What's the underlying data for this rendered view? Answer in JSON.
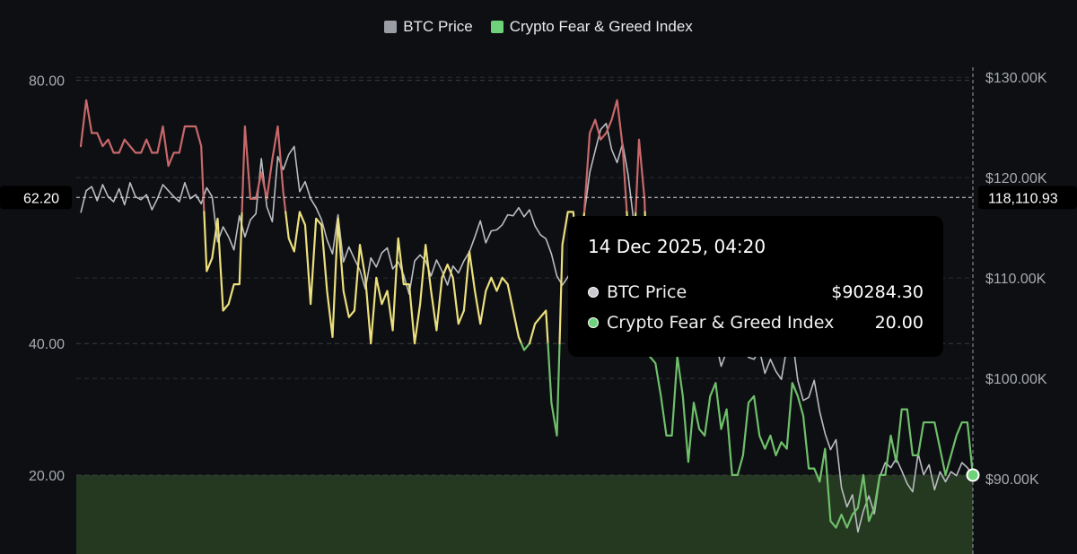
{
  "legend": [
    {
      "label": "BTC Price",
      "color": "#9a9da3"
    },
    {
      "label": "Crypto Fear & Greed Index",
      "color": "#6fd27b"
    }
  ],
  "crosshair": {
    "left_value": "62.20",
    "right_value": "118,110.93"
  },
  "tooltip": {
    "title": "14 Dec 2025, 04:20",
    "rows": [
      {
        "label": "BTC Price",
        "value": "$90284.30",
        "color": "#c8cacd"
      },
      {
        "label": "Crypto Fear & Greed Index",
        "value": "20.00",
        "color": "#6fd27b"
      }
    ]
  },
  "chart_data": {
    "type": "line",
    "left_axis": {
      "range": [
        8,
        82
      ],
      "ticks": [
        "80.00",
        "40.00",
        "20.00"
      ],
      "tick_values": [
        80,
        40,
        20
      ]
    },
    "right_axis": {
      "range": [
        82500,
        131000
      ],
      "ticks": [
        "$130.00K",
        "$120.00K",
        "$110.00K",
        "$100.00K",
        "$90.00K"
      ],
      "tick_values": [
        130000,
        120000,
        110000,
        100000,
        90000
      ]
    },
    "grid": true,
    "zones": {
      "greed_above": 60,
      "fear_below": 40,
      "extreme_fear_below": 20
    },
    "zone_colors": {
      "greed": "#c8686a",
      "neutral": "#ecdf7d",
      "fear": "#6fbf6b",
      "extreme_fear_fill": "#24391f"
    },
    "series": [
      {
        "name": "BTC Price",
        "axis": "right",
        "color": "#b9bcc0",
        "values": [
          116500,
          118700,
          119100,
          117700,
          119300,
          118100,
          117600,
          118900,
          117300,
          119500,
          118100,
          117800,
          118300,
          116800,
          117900,
          119300,
          118700,
          118100,
          117600,
          119500,
          117900,
          118300,
          117400,
          119000,
          118100,
          113600,
          115100,
          114100,
          112800,
          116200,
          114100,
          115800,
          116400,
          121900,
          117100,
          115600,
          122100,
          120800,
          122300,
          123100,
          118600,
          119600,
          117900,
          117000,
          115800,
          113800,
          112400,
          116300,
          111600,
          113100,
          111900,
          110800,
          108900,
          112000,
          111100,
          112500,
          113000,
          110900,
          111600,
          110300,
          108400,
          111700,
          112300,
          111700,
          110200,
          111800,
          110700,
          109300,
          111200,
          110500,
          111700,
          112600,
          114100,
          115700,
          113500,
          114700,
          114800,
          115300,
          116300,
          116200,
          117000,
          116100,
          116800,
          115200,
          114300,
          113900,
          112400,
          110200,
          109300,
          110100,
          111100,
          113300,
          116400,
          120500,
          122700,
          124800,
          125400,
          122800,
          121500,
          123400,
          120300,
          115800,
          113100,
          112900,
          114100,
          112800,
          113900,
          112500,
          111100,
          110100,
          112200,
          108300,
          106600,
          108000,
          107100,
          105000,
          103700,
          101200,
          102700,
          104000,
          102500,
          103100,
          102100,
          101900,
          102800,
          100500,
          101900,
          100700,
          99900,
          103100,
          104000,
          99800,
          97800,
          98100,
          99800,
          96700,
          94500,
          92900,
          93900,
          89100,
          87200,
          88400,
          84700,
          86800,
          88300,
          86500,
          90200,
          91600,
          91100,
          92000,
          90800,
          89500,
          88700,
          92500,
          90400,
          91400,
          88900,
          90700,
          89700,
          90700,
          90300,
          91600,
          91100,
          90300
        ]
      },
      {
        "name": "Crypto Fear & Greed Index",
        "axis": "left",
        "color": "#6fd27b",
        "values": [
          70,
          77,
          72,
          72,
          70,
          71,
          69,
          69,
          71,
          70,
          69,
          69,
          71,
          69,
          69,
          73,
          67,
          69,
          69,
          73,
          73,
          73,
          70,
          51,
          53,
          59,
          45,
          46,
          49,
          49,
          73,
          62,
          62,
          66,
          62,
          68,
          73,
          63,
          56,
          54,
          60,
          58,
          46,
          59,
          58,
          48,
          41,
          59,
          48,
          44,
          45,
          55,
          50,
          40,
          50,
          46,
          48,
          42,
          56,
          49,
          49,
          40,
          46,
          55,
          48,
          42,
          50,
          52,
          50,
          43,
          45,
          54,
          48,
          43,
          48,
          50,
          48,
          50,
          49,
          45,
          41,
          39,
          40,
          43,
          44,
          45,
          31,
          26,
          55,
          60,
          60,
          50,
          60,
          72,
          74,
          71,
          72,
          74,
          77,
          70,
          57,
          53,
          71,
          62,
          38,
          37,
          32,
          26,
          26,
          38,
          32,
          22,
          31,
          27,
          26,
          32,
          34,
          27,
          30,
          20,
          20,
          23,
          31,
          32,
          26,
          24,
          26,
          23,
          25,
          24,
          34,
          32,
          29,
          21,
          21,
          19,
          24,
          13,
          12,
          14,
          12,
          14,
          15,
          20,
          13,
          15,
          20,
          20,
          26,
          22,
          30,
          30,
          23,
          23,
          28,
          28,
          28,
          24,
          20,
          23,
          26,
          28,
          28,
          20
        ]
      }
    ]
  }
}
